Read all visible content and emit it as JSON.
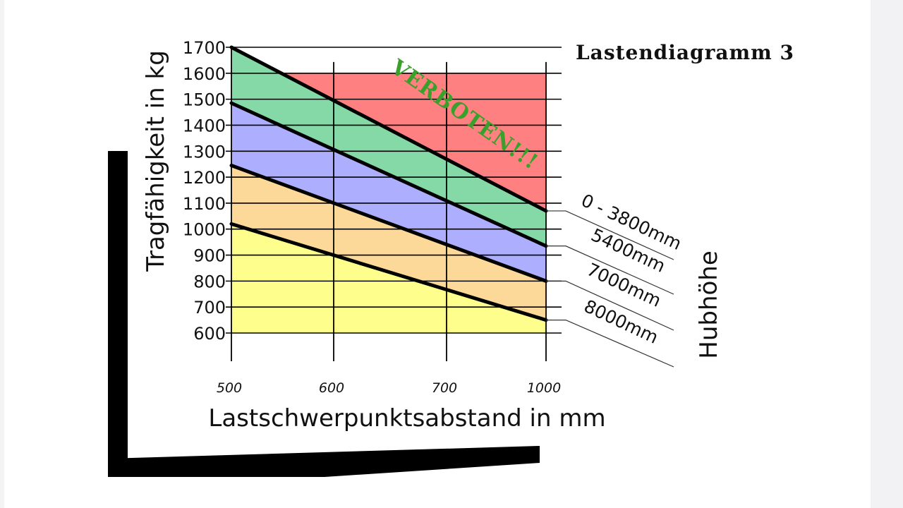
{
  "chart_data": {
    "type": "area",
    "title": "Lastendiagramm 3",
    "xlabel": "Lastschwerpunktsabstand in mm",
    "ylabel": "Tragfähigkeit in kg",
    "categories": [
      "500",
      "600",
      "700",
      "1000"
    ],
    "yticks": [
      "1700",
      "1600",
      "1500",
      "1400",
      "1300",
      "1200",
      "1100",
      "1000",
      "900",
      "800",
      "700",
      "600"
    ],
    "ylim": [
      600,
      1700
    ],
    "legend_title": "Hubhöhe",
    "annotation": "VERBOTEN!!!",
    "grid": true,
    "series": [
      {
        "name": "0 - 3800mm",
        "start": 1700,
        "end": 1070,
        "color": "#84d9a7"
      },
      {
        "name": "5400mm",
        "start": 1485,
        "end": 935,
        "color": "#aeaeff"
      },
      {
        "name": "7000mm",
        "start": 1245,
        "end": 800,
        "color": "#fcd999"
      },
      {
        "name": "8000mm",
        "start": 1020,
        "end": 650,
        "color": "#fefe8c"
      }
    ],
    "forbidden_color": "#ff8080"
  }
}
